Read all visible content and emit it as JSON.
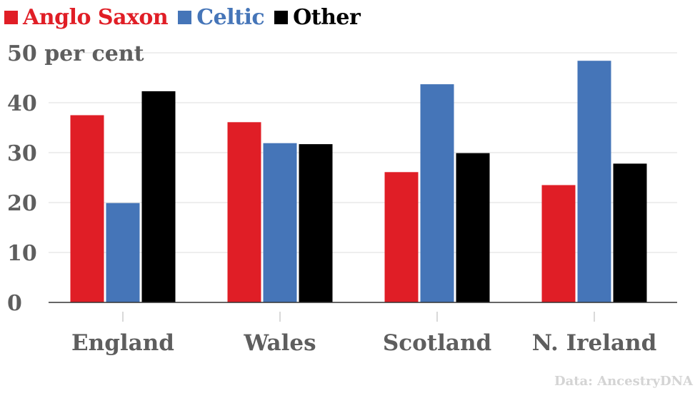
{
  "chart_data": {
    "type": "bar",
    "categories": [
      "England",
      "Wales",
      "Scotland",
      "N. Ireland"
    ],
    "series": [
      {
        "name": "Anglo Saxon",
        "color": "#e01e26",
        "values": [
          37.5,
          36.1,
          26.1,
          23.5
        ]
      },
      {
        "name": "Celtic",
        "color": "#4575b8",
        "values": [
          19.9,
          31.9,
          43.7,
          48.4
        ]
      },
      {
        "name": "Other",
        "color": "#000000",
        "values": [
          42.3,
          31.7,
          29.9,
          27.8
        ]
      }
    ],
    "ylabel": "per cent",
    "ylim": [
      0,
      50
    ],
    "yticks": [
      0,
      10,
      20,
      30,
      40,
      50
    ],
    "ytick_labels": [
      "0",
      "10",
      "20",
      "30",
      "40",
      "50 per cent"
    ],
    "grid": true,
    "legend_position": "top-left"
  },
  "source": "Data: AncestryDNA"
}
